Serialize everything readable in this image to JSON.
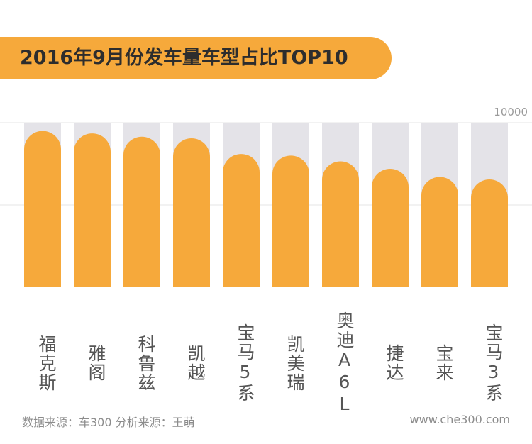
{
  "chart_data": {
    "type": "bar",
    "title": "2016年9月份发车量车型占比TOP10",
    "categories": [
      "福克斯",
      "雅阁",
      "科鲁兹",
      "凯越",
      "宝马5系",
      "凯美瑞",
      "奥迪A6L",
      "捷达",
      "宝来",
      "宝马3系"
    ],
    "values": [
      9500,
      9350,
      9150,
      9050,
      8100,
      8000,
      7650,
      7200,
      6700,
      6550
    ],
    "ylim": [
      0,
      10000
    ],
    "max_tick_label": "10000",
    "xlabel": "",
    "ylabel": "",
    "colors": {
      "bar": "#f6a93b",
      "track": "#e4e3e8",
      "grid": "#e5e5e5"
    }
  },
  "footer": {
    "source": "数据来源：车300 分析来源：王萌",
    "website": "www.che300.com"
  }
}
